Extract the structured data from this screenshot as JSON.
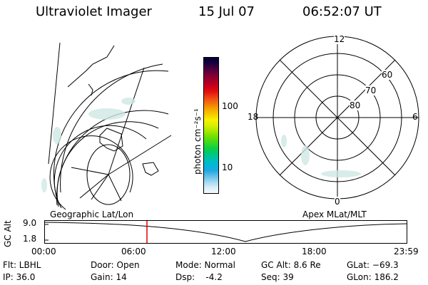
{
  "header": {
    "title": "Ultraviolet Imager",
    "date": "15 Jul 07",
    "time": "06:52:07 UT"
  },
  "colorbar": {
    "unit_label": "photon cm⁻²s⁻¹",
    "tick_100": "100",
    "tick_10": "10",
    "colors": [
      "#000033",
      "#1a0040",
      "#4b0040",
      "#7a0038",
      "#a00028",
      "#c8001a",
      "#e01010",
      "#f04010",
      "#f07010",
      "#f5a000",
      "#f8c800",
      "#f8f000",
      "#d8f000",
      "#a8e800",
      "#70e000",
      "#40d820",
      "#10d040",
      "#00c878",
      "#00c0b0",
      "#00b8d8",
      "#20a8e0",
      "#60c0e8",
      "#a0d8f0",
      "#d8eef8",
      "#f4fafc"
    ]
  },
  "left_panel": {
    "label": "Geographic Lat/Lon"
  },
  "right_panel": {
    "label": "Apex MLat/MLT",
    "mlt_labels": {
      "top": "12",
      "left": "18",
      "right": "6",
      "bottom": "0"
    },
    "lat_labels": [
      "60",
      "70",
      "80"
    ]
  },
  "timeline": {
    "axis_label": "GC Alt",
    "y_top": "9.0",
    "y_bottom": "1.8",
    "x_labels": [
      "00:00",
      "06:00",
      "12:00",
      "18:00",
      "23:59"
    ],
    "marker_color": "#dd0000"
  },
  "info": {
    "flt": "Flt: LBHL",
    "ip": "IP: 36.0",
    "door": "Door: Open",
    "gain": "Gain: 14",
    "mode": "Mode: Normal",
    "dsp": "Dsp:    -4.2",
    "gc_alt": "GC Alt: 8.6 Re",
    "seq": "Seq: 39",
    "glat": "GLat: −69.3",
    "glon": "GLon: 186.2"
  }
}
